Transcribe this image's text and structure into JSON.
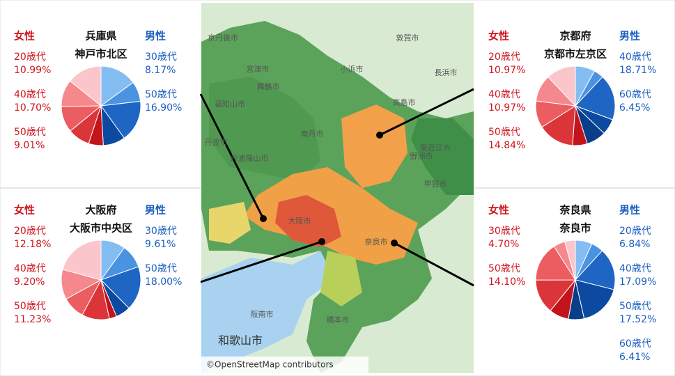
{
  "chart_data": [
    {
      "type": "pie",
      "title": "兵庫県",
      "subtitle": "神戸市北区",
      "series": [
        {
          "name": "男性",
          "categories": [
            null,
            "30歳代",
            "50歳代",
            null
          ],
          "values": [
            15.0,
            8.17,
            16.9,
            9.0
          ],
          "value_labels": [
            null,
            "8.17%",
            "16.90%",
            null
          ],
          "colors": [
            "#84bdf2",
            "#4a93e0",
            "#1f66c4",
            "#0b4aa0"
          ]
        },
        {
          "name": "女性",
          "categories": [
            null,
            "50歳代",
            "40歳代",
            "20歳代",
            null
          ],
          "values": [
            6.0,
            9.01,
            10.7,
            10.99,
            14.23
          ],
          "value_labels": [
            null,
            "9.01%",
            "10.70%",
            "10.99%",
            null
          ],
          "colors": [
            "#c4141b",
            "#dc3539",
            "#ec5d62",
            "#f4888c",
            "#fbc6cb"
          ]
        }
      ]
    },
    {
      "type": "pie",
      "title": "京都府",
      "subtitle": "京都市左京区",
      "series": [
        {
          "name": "男性",
          "categories": [
            null,
            null,
            "40歳代",
            "60歳代",
            null
          ],
          "values": [
            8.0,
            4.0,
            18.71,
            6.45,
            8.0
          ],
          "value_labels": [
            null,
            null,
            "18.71%",
            "6.45%",
            null
          ],
          "colors": [
            "#84bdf2",
            "#4a93e0",
            "#1f66c4",
            "#0b4aa0",
            "#0a3d8a"
          ]
        },
        {
          "name": "女性",
          "categories": [
            null,
            "50歳代",
            "40歳代",
            "20歳代",
            null
          ],
          "values": [
            6.0,
            14.84,
            10.97,
            10.97,
            12.06
          ],
          "value_labels": [
            null,
            "14.84%",
            "10.97%",
            "10.97%",
            null
          ],
          "colors": [
            "#c4141b",
            "#dc3539",
            "#ec5d62",
            "#f4888c",
            "#fbc6cb"
          ]
        }
      ]
    },
    {
      "type": "pie",
      "title": "大阪府",
      "subtitle": "大阪市中央区",
      "series": [
        {
          "name": "男性",
          "categories": [
            null,
            "30歳代",
            "50歳代",
            null
          ],
          "values": [
            10.0,
            9.61,
            18.0,
            6.0
          ],
          "value_labels": [
            null,
            "9.61%",
            "18.00%",
            null
          ],
          "colors": [
            "#84bdf2",
            "#4a93e0",
            "#1f66c4",
            "#0b4aa0"
          ]
        },
        {
          "name": "女性",
          "categories": [
            null,
            "50歳代",
            "40歳代",
            "20歳代",
            null
          ],
          "values": [
            3.0,
            11.23,
            9.2,
            12.18,
            20.78
          ],
          "value_labels": [
            null,
            "11.23%",
            "9.20%",
            "12.18%",
            null
          ],
          "colors": [
            "#c4141b",
            "#dc3539",
            "#ec5d62",
            "#f4888c",
            "#fbc6cb"
          ]
        }
      ]
    },
    {
      "type": "pie",
      "title": "奈良県",
      "subtitle": "奈良市",
      "series": [
        {
          "name": "男性",
          "categories": [
            "20歳代",
            null,
            "40歳代",
            "50歳代",
            "60歳代"
          ],
          "values": [
            6.84,
            5.0,
            17.09,
            17.52,
            6.41
          ],
          "value_labels": [
            "6.84%",
            null,
            "17.09%",
            "17.52%",
            "6.41%"
          ],
          "colors": [
            "#84bdf2",
            "#4a93e0",
            "#1f66c4",
            "#0b4aa0",
            "#0a3d8a"
          ]
        },
        {
          "name": "女性",
          "categories": [
            null,
            "50歳代",
            null,
            "30歳代",
            null
          ],
          "values": [
            8.0,
            14.1,
            16.0,
            4.7,
            4.34
          ],
          "value_labels": [
            null,
            "14.10%",
            null,
            "4.70%",
            null
          ],
          "colors": [
            "#c4141b",
            "#dc3539",
            "#ec5d62",
            "#f4888c",
            "#fbc6cb"
          ]
        }
      ]
    }
  ],
  "map": {
    "labels": [
      "京丹後市",
      "宮津市",
      "舞鶴市",
      "小浜市",
      "敦賀市",
      "長浜市",
      "高島市",
      "福知山市",
      "丹波市",
      "南丹市",
      "丹波篠山市",
      "野洲市",
      "東近江市",
      "甲賀市",
      "大阪市",
      "奈良市",
      "阪南市",
      "和歌山市",
      "橋本市"
    ],
    "attribution": "©OpenStreetMap contributors"
  }
}
